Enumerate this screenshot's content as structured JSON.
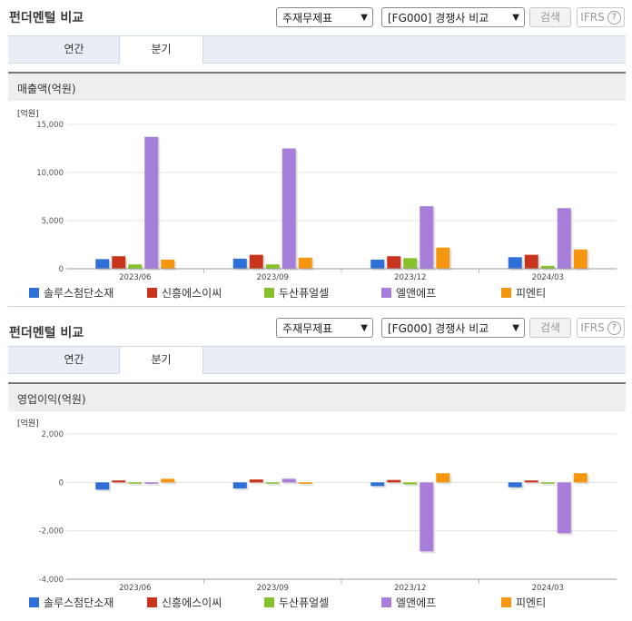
{
  "sections": [
    {
      "title": "펀더멘털 비교",
      "select1": "주재무제표",
      "select2": "[FG000] 경쟁사 비교",
      "search_label": "검색",
      "ifrs_label": "IFRS",
      "help_icon": "?",
      "tabs": [
        "연간",
        "분기"
      ],
      "active_tab": "분기",
      "subheader": "매출액(억원)"
    },
    {
      "title": "펀더멘털 비교",
      "select1": "주재무제표",
      "select2": "[FG000] 경쟁사 비교",
      "search_label": "검색",
      "ifrs_label": "IFRS",
      "help_icon": "?",
      "tabs": [
        "연간",
        "분기"
      ],
      "active_tab": "분기",
      "subheader": "영업이익(억원)"
    }
  ],
  "chart_data": [
    {
      "type": "bar",
      "unit_label": "[억원]",
      "categories": [
        "2023/06",
        "2023/09",
        "2023/12",
        "2024/03"
      ],
      "ylim": [
        0,
        15000
      ],
      "yticks": [
        0,
        5000,
        10000,
        15000
      ],
      "ytick_labels": [
        "0",
        "5,000",
        "10,000",
        "15,000"
      ],
      "grid": true,
      "legend_position": "bottom",
      "series": [
        {
          "name": "솔루스첨단소재",
          "color": "#2f6fd8",
          "values": [
            1000,
            1050,
            950,
            1200
          ]
        },
        {
          "name": "신흥에스이씨",
          "color": "#c8341c",
          "values": [
            1300,
            1450,
            1300,
            1450
          ]
        },
        {
          "name": "두산퓨얼셀",
          "color": "#86c02b",
          "values": [
            450,
            450,
            1100,
            300
          ]
        },
        {
          "name": "엘앤에프",
          "color": "#a77ed9",
          "values": [
            13700,
            12500,
            6500,
            6300
          ]
        },
        {
          "name": "피엔티",
          "color": "#f5960e",
          "values": [
            950,
            1150,
            2200,
            2000
          ]
        }
      ]
    },
    {
      "type": "bar",
      "unit_label": "[억원]",
      "categories": [
        "2023/06",
        "2023/09",
        "2023/12",
        "2024/03"
      ],
      "ylim": [
        -4000,
        2000
      ],
      "yticks": [
        -4000,
        -2000,
        0,
        2000
      ],
      "ytick_labels": [
        "-4,000",
        "-2,000",
        "0",
        "2,000"
      ],
      "grid": true,
      "legend_position": "bottom",
      "series": [
        {
          "name": "솔루스첨단소재",
          "color": "#2f6fd8",
          "values": [
            -300,
            -250,
            -150,
            -200
          ]
        },
        {
          "name": "신흥에스이씨",
          "color": "#c8341c",
          "values": [
            80,
            120,
            100,
            80
          ]
        },
        {
          "name": "두산퓨얼셀",
          "color": "#86c02b",
          "values": [
            -20,
            -30,
            -80,
            -30
          ]
        },
        {
          "name": "엘앤에프",
          "color": "#a77ed9",
          "values": [
            -20,
            150,
            -2850,
            -2100
          ]
        },
        {
          "name": "피엔티",
          "color": "#f5960e",
          "values": [
            150,
            -60,
            380,
            380
          ]
        }
      ]
    }
  ]
}
